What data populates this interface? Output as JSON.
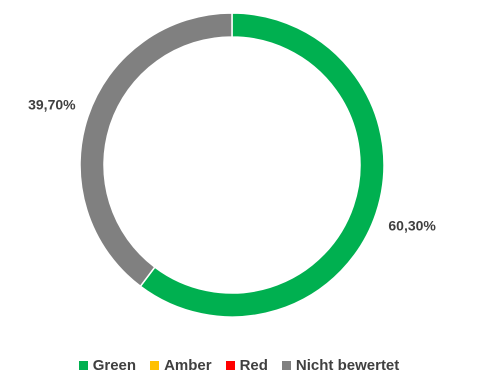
{
  "chart_data": {
    "type": "pie",
    "variant": "donut",
    "categories": [
      "Green",
      "Amber",
      "Red",
      "Nicht bewertet"
    ],
    "values": [
      60.3,
      0,
      0,
      39.7
    ],
    "colors": [
      "#00B050",
      "#FFC000",
      "#FF0000",
      "#808080"
    ],
    "data_labels": [
      "60,30%",
      "",
      "",
      "39,70%"
    ],
    "legend": {
      "position": "bottom",
      "entries": [
        "Green",
        "Amber",
        "Red",
        "Nicht bewertet"
      ]
    },
    "title": ""
  }
}
